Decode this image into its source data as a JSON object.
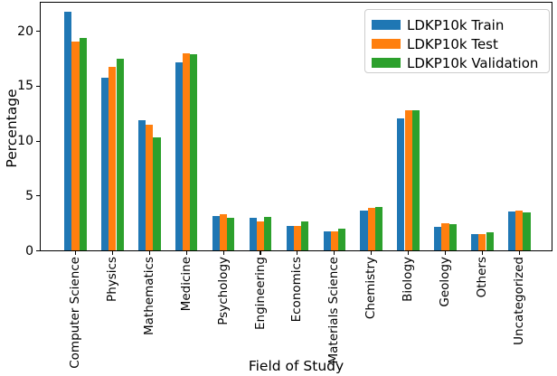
{
  "chart_data": {
    "type": "bar",
    "title": "",
    "xlabel": "Field of Study",
    "ylabel": "Percentage",
    "categories": [
      "Computer Science",
      "Physics",
      "Mathematics",
      "Medicine",
      "Psychology",
      "Engineering",
      "Economics",
      "Materials Science",
      "Chemistry",
      "Biology",
      "Geology",
      "Others",
      "Uncategorized"
    ],
    "series": [
      {
        "name": "LDKP10k Train",
        "color": "#1f77b4",
        "values": [
          21.8,
          15.8,
          11.9,
          17.2,
          3.2,
          3.0,
          2.3,
          1.8,
          3.7,
          12.1,
          2.2,
          1.5,
          3.6
        ]
      },
      {
        "name": "LDKP10k Test",
        "color": "#ff7f0e",
        "values": [
          19.1,
          16.8,
          11.5,
          18.0,
          3.3,
          2.7,
          2.3,
          1.8,
          3.9,
          12.8,
          2.5,
          1.5,
          3.7
        ]
      },
      {
        "name": "LDKP10k Validation",
        "color": "#2ca02c",
        "values": [
          19.4,
          17.5,
          10.3,
          17.9,
          3.0,
          3.1,
          2.7,
          2.0,
          4.0,
          12.8,
          2.4,
          1.7,
          3.5
        ]
      }
    ],
    "ylim": [
      0,
      22.7
    ],
    "yticks": [
      0,
      5,
      10,
      15,
      20
    ],
    "grid": false,
    "legend_position": "upper right"
  }
}
